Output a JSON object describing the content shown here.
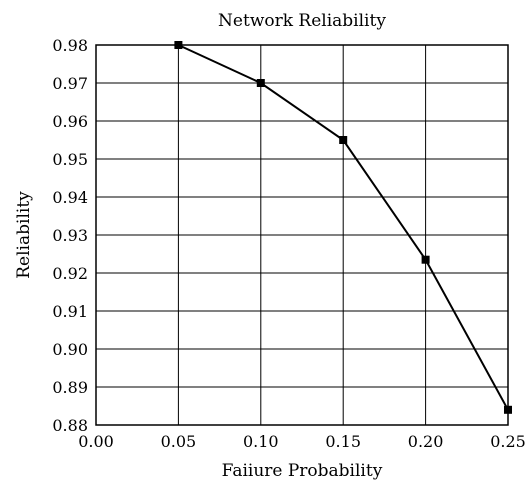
{
  "chart_data": {
    "type": "line",
    "title": "Network Reliability",
    "xlabel": "Faiiure Probability",
    "ylabel": "Reliability",
    "xlim": [
      0.0,
      0.25
    ],
    "ylim": [
      0.88,
      0.98
    ],
    "x_ticks": [
      "0.00",
      "0.05",
      "0.10",
      "0.15",
      "0.20",
      "0.25"
    ],
    "y_ticks": [
      "0.98",
      "0.97",
      "0.96",
      "0.95",
      "0.94",
      "0.93",
      "0.92",
      "0.91",
      "0.90",
      "0.89",
      "0.88"
    ],
    "grid": true,
    "series": [
      {
        "x": [
          0.05,
          0.1,
          0.15,
          0.2,
          0.25
        ],
        "y": [
          0.98,
          0.97,
          0.955,
          0.9235,
          0.884
        ]
      }
    ],
    "colors": {
      "line": "#000000",
      "grid": "#000000"
    }
  }
}
